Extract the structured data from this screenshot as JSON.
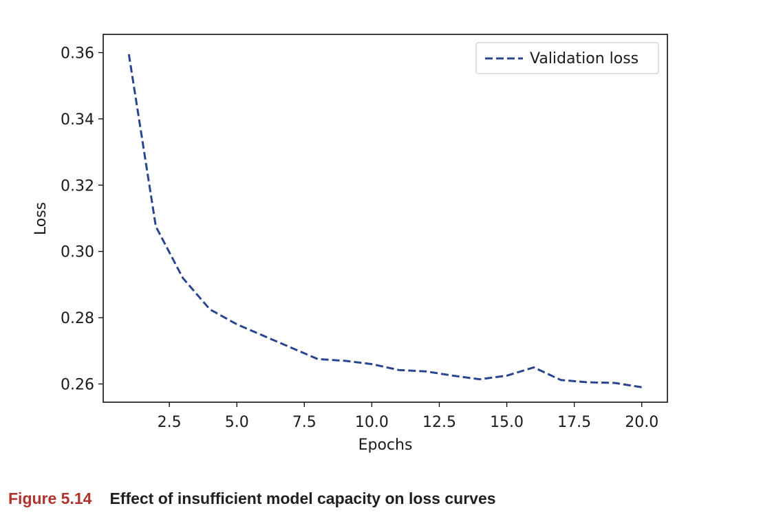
{
  "chart_data": {
    "type": "line",
    "title": "",
    "xlabel": "Epochs",
    "ylabel": "Loss",
    "xlim": [
      0.05,
      20.95
    ],
    "ylim": [
      0.2545,
      0.3655
    ],
    "xticks": [
      2.5,
      5.0,
      7.5,
      10.0,
      12.5,
      15.0,
      17.5,
      20.0
    ],
    "xtick_labels": [
      "2.5",
      "5.0",
      "7.5",
      "10.0",
      "12.5",
      "15.0",
      "17.5",
      "20.0"
    ],
    "yticks": [
      0.26,
      0.28,
      0.3,
      0.32,
      0.34,
      0.36
    ],
    "ytick_labels": [
      "0.26",
      "0.28",
      "0.30",
      "0.32",
      "0.34",
      "0.36"
    ],
    "grid": false,
    "legend_position": "upper-right",
    "series": [
      {
        "name": "Validation loss",
        "color": "#2a4590",
        "linestyle": "dashed",
        "x": [
          1,
          2,
          3,
          4,
          5,
          6,
          7,
          8,
          9,
          10,
          11,
          12,
          13,
          14,
          15,
          16,
          17,
          18,
          19,
          20
        ],
        "y": [
          0.3595,
          0.3075,
          0.292,
          0.2825,
          0.278,
          0.2745,
          0.271,
          0.2675,
          0.267,
          0.266,
          0.2642,
          0.2638,
          0.2625,
          0.2614,
          0.2625,
          0.265,
          0.2612,
          0.2605,
          0.2603,
          0.259
        ]
      }
    ]
  },
  "caption": {
    "number": "Figure 5.14",
    "text": "Effect of insufficient model capacity on loss curves"
  }
}
